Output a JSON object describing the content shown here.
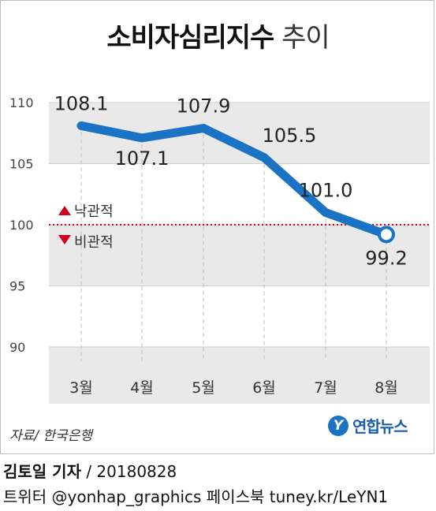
{
  "title": {
    "bold": "소비자심리지수",
    "light": "추이"
  },
  "chart_data": {
    "type": "line",
    "categories": [
      "3월",
      "4월",
      "5월",
      "6월",
      "7월",
      "8월"
    ],
    "series": [
      {
        "values": [
          108.1,
          107.1,
          107.9,
          105.5,
          101.0,
          99.2
        ]
      }
    ],
    "value_labels": [
      "108.1",
      "107.1",
      "107.9",
      "105.5",
      "101.0",
      "99.2"
    ],
    "ylim": [
      90,
      110
    ],
    "yticks": [
      "90",
      "95",
      "100",
      "105",
      "110"
    ],
    "reference_line": {
      "value": 100,
      "above_label": "낙관적",
      "below_label": "비관적",
      "color": "#d0021b"
    },
    "line_color": "#1a73c4",
    "band_color": "#e9e9e9",
    "grid": false
  },
  "source": "자료/ 한국은행",
  "brand": {
    "logo_letter": "Y",
    "name": "연합뉴스"
  },
  "credit": {
    "author": "김토일 기자",
    "date": "/ 20180828",
    "social": "트위터 @yonhap_graphics  페이스북 tuney.kr/LeYN1"
  }
}
